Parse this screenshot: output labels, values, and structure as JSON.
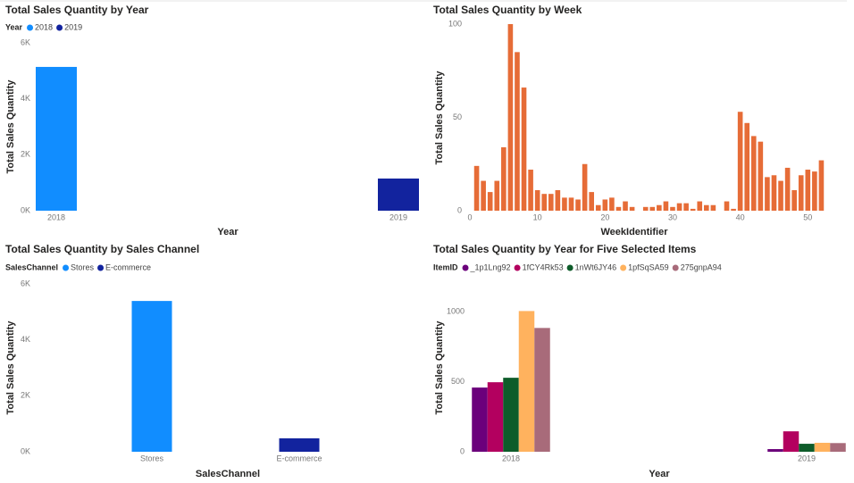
{
  "chart_data": [
    {
      "type": "bar",
      "title": "Total Sales Quantity by Year",
      "legend_title": "Year",
      "categories": [
        "2018",
        "2019"
      ],
      "values": [
        5140,
        1150
      ],
      "colors": [
        "#118dff",
        "#12239e"
      ],
      "x_label": "Year",
      "y_label": "Total Sales Quantity",
      "ylim": [
        0,
        6000
      ],
      "yticks": [
        {
          "value": 0,
          "label": "0K"
        },
        {
          "value": 2000,
          "label": "2K"
        },
        {
          "value": 4000,
          "label": "4K"
        },
        {
          "value": 6000,
          "label": "6K"
        }
      ]
    },
    {
      "type": "bar",
      "title": "Total Sales Quantity by Week",
      "x": [
        1,
        2,
        3,
        4,
        5,
        6,
        7,
        8,
        9,
        10,
        11,
        12,
        13,
        14,
        15,
        16,
        17,
        18,
        19,
        20,
        21,
        22,
        23,
        24,
        25,
        26,
        27,
        28,
        29,
        30,
        31,
        32,
        33,
        34,
        35,
        36,
        37,
        38,
        39,
        40,
        41,
        42,
        43,
        44,
        45,
        46,
        47,
        48,
        49,
        50,
        51,
        52
      ],
      "values": [
        24,
        16,
        10,
        16,
        34,
        100,
        85,
        66,
        22,
        11,
        9,
        9,
        11,
        7,
        7,
        6,
        25,
        10,
        3,
        6,
        7,
        2,
        5,
        2,
        null,
        2,
        2,
        3,
        5,
        2,
        4,
        4,
        1,
        5,
        3,
        3,
        null,
        5,
        1,
        53,
        47,
        40,
        37,
        18,
        19,
        16,
        23,
        11,
        19,
        22,
        21,
        27
      ],
      "color": "#e66c37",
      "x_label": "WeekIdentifier",
      "y_label": "Total Sales Quantity",
      "xlim": [
        0,
        53
      ],
      "xticks": [
        0,
        10,
        20,
        30,
        40,
        50
      ],
      "ylim": [
        0,
        100
      ],
      "yticks": [
        0,
        50,
        100
      ]
    },
    {
      "type": "bar",
      "title": "Total Sales Quantity by Sales Channel",
      "legend_title": "SalesChannel",
      "categories": [
        "Stores",
        "E-commerce"
      ],
      "values": [
        5390,
        480
      ],
      "colors": [
        "#118dff",
        "#12239e"
      ],
      "x_label": "SalesChannel",
      "y_label": "Total Sales Quantity",
      "ylim": [
        0,
        6000
      ],
      "yticks": [
        {
          "value": 0,
          "label": "0K"
        },
        {
          "value": 2000,
          "label": "2K"
        },
        {
          "value": 4000,
          "label": "4K"
        },
        {
          "value": 6000,
          "label": "6K"
        }
      ]
    },
    {
      "type": "grouped_bar",
      "title": "Total Sales Quantity by Year for Five Selected Items",
      "legend_title": "ItemID",
      "categories": [
        "2018",
        "2019"
      ],
      "series": [
        {
          "name": "_1p1Lng92",
          "color": "#6b007b",
          "values": [
            459,
            19
          ]
        },
        {
          "name": "1fCY4Rk53",
          "color": "#b3005f",
          "values": [
            497,
            146
          ]
        },
        {
          "name": "1nWt6JY46",
          "color": "#0e5c2a",
          "values": [
            529,
            57
          ]
        },
        {
          "name": "1pfSqSA59",
          "color": "#ffb25e",
          "values": [
            1006,
            64
          ]
        },
        {
          "name": "275gnpA94",
          "color": "#a86b7a",
          "values": [
            885,
            62
          ]
        }
      ],
      "x_label": "Year",
      "y_label": "Total Sales Quantity",
      "ylim": [
        0,
        1200
      ],
      "yticks": [
        0,
        500,
        1000
      ]
    }
  ]
}
